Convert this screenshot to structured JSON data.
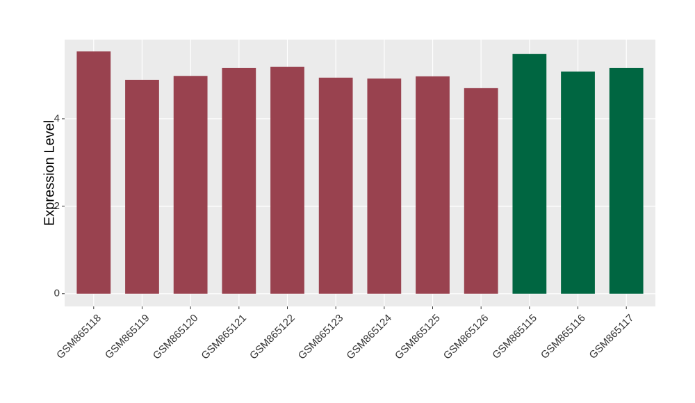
{
  "chart_data": {
    "type": "bar",
    "y_label": "Expression Level",
    "categories": [
      "GSM865118",
      "GSM865119",
      "GSM865120",
      "GSM865121",
      "GSM865122",
      "GSM865123",
      "GSM865124",
      "GSM865125",
      "GSM865126",
      "GSM865115",
      "GSM865116",
      "GSM865117"
    ],
    "values": [
      5.54,
      4.89,
      4.98,
      5.16,
      5.19,
      4.94,
      4.92,
      4.97,
      4.7,
      5.48,
      5.08,
      5.16
    ],
    "colors": [
      "#99424f",
      "#99424f",
      "#99424f",
      "#99424f",
      "#99424f",
      "#99424f",
      "#99424f",
      "#99424f",
      "#99424f",
      "#006641",
      "#006641",
      "#006641"
    ],
    "ylim": [
      -0.29,
      5.81
    ],
    "yticks": [
      0,
      2,
      4
    ],
    "grid": true
  }
}
